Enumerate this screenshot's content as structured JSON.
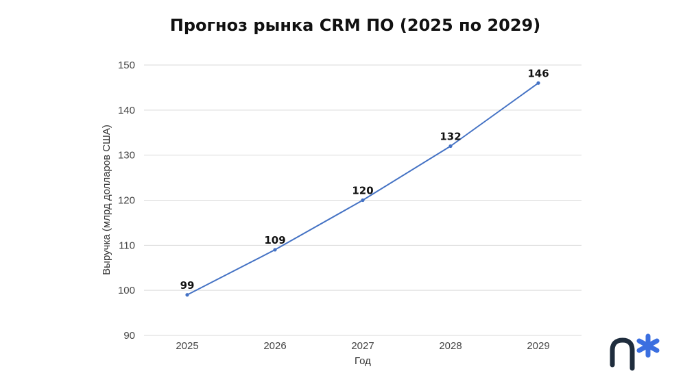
{
  "chart_data": {
    "type": "line",
    "title": "Прогноз рынка CRM ПО (2025 по 2029)",
    "xlabel": "Год",
    "ylabel": "Выручка (млрд долларов США)",
    "categories": [
      "2025",
      "2026",
      "2027",
      "2028",
      "2029"
    ],
    "series": [
      {
        "values": [
          99,
          109,
          120,
          132,
          146
        ]
      }
    ],
    "data_labels": [
      "99",
      "109",
      "120",
      "132",
      "146"
    ],
    "ylim": [
      90,
      150
    ],
    "yticks": [
      90,
      100,
      110,
      120,
      130,
      140,
      150
    ],
    "ytick_labels": [
      "90",
      "100",
      "110",
      "120",
      "130",
      "140",
      "150"
    ],
    "grid": true,
    "line_color": "#4472c4"
  },
  "logo": {
    "icon": "asterisk-logo-icon",
    "dark_color": "#1f2d3d",
    "accent_color": "#3b6fe0"
  }
}
